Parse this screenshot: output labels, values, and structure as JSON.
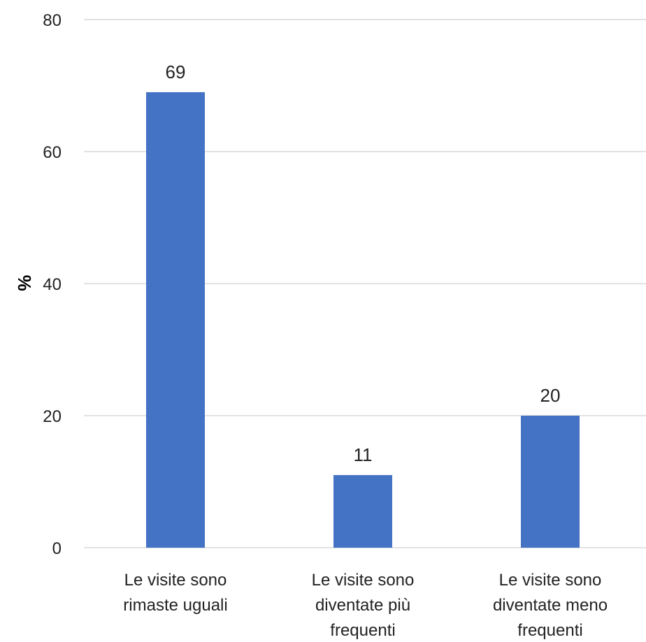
{
  "chart_data": {
    "type": "bar",
    "categories": [
      [
        "Le visite sono",
        "rimaste uguali"
      ],
      [
        "Le visite sono",
        "diventate più",
        "frequenti"
      ],
      [
        "Le visite sono",
        "diventate meno",
        "frequenti"
      ]
    ],
    "values": [
      69,
      11,
      20
    ],
    "ylabel": "%",
    "ylim": [
      0,
      80
    ],
    "yticks": [
      0,
      20,
      40,
      60,
      80
    ],
    "grid": true,
    "colors": {
      "bar": "#4472c4"
    }
  }
}
